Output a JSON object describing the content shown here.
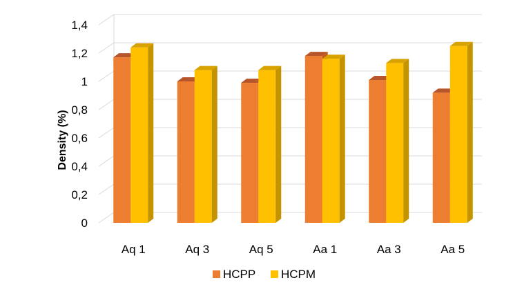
{
  "chart_data": {
    "type": "bar",
    "style": "3d-clustered-column",
    "title": "",
    "xlabel": "",
    "ylabel": "Density (%)",
    "ylim": [
      0,
      1.4
    ],
    "yticks": [
      "0",
      "0,2",
      "0,4",
      "0,6",
      "0,8",
      "1",
      "1,2",
      "1,4"
    ],
    "grid": true,
    "legend_position": "bottom",
    "categories": [
      "Aq 1",
      "Aq 3",
      "Aq 5",
      "Aa 1",
      "Aa 3",
      "Aa 5"
    ],
    "series": [
      {
        "name": "HCPP",
        "color": "#ed7d31",
        "side_color": "#c8581b",
        "top_color": "#b6562a",
        "values": [
          1.17,
          1.0,
          0.99,
          1.18,
          1.01,
          0.92
        ]
      },
      {
        "name": "HCPM",
        "color": "#ffc000",
        "side_color": "#c49300",
        "top_color": "#d8a200",
        "values": [
          1.24,
          1.08,
          1.08,
          1.16,
          1.13,
          1.25
        ]
      }
    ]
  }
}
